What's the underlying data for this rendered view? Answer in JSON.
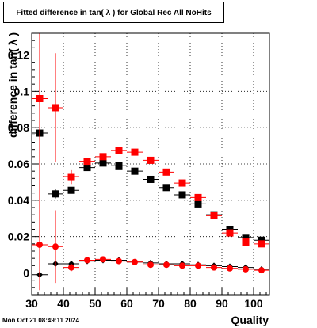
{
  "chart_data": {
    "type": "scatter",
    "title": "Fitted difference in tan( λ ) for Global Rec All NoHits",
    "xlabel": "Quality",
    "ylabel": "difference in tan( λ )",
    "xlim": [
      30,
      105
    ],
    "ylim": [
      -0.012,
      0.132
    ],
    "x_ticks": [
      30,
      40,
      50,
      60,
      70,
      80,
      90,
      100
    ],
    "y_ticks": [
      0,
      0.02,
      0.04,
      0.06,
      0.08,
      0.1,
      0.12
    ],
    "y_tick_labels": [
      "0",
      "0.02",
      "0.04",
      "0.06",
      "0.08",
      "0.1",
      "0.12"
    ],
    "grid": true,
    "x_bin_half_width": 2.5,
    "series": [
      {
        "marker": "square",
        "color": "#000000",
        "x": [
          32.5,
          37.5,
          42.5,
          47.5,
          52.5,
          57.5,
          62.5,
          67.5,
          72.5,
          77.5,
          82.5,
          87.5,
          92.5,
          97.5,
          102.5
        ],
        "y": [
          0.077,
          0.0435,
          0.0455,
          0.058,
          0.0605,
          0.059,
          0.056,
          0.0515,
          0.047,
          0.043,
          0.038,
          0.032,
          0.024,
          0.0195,
          0.018
        ],
        "yerr": [
          0.0,
          0.0025,
          0.0015,
          0.001,
          0.001,
          0.001,
          0.001,
          0.001,
          0.001,
          0.001,
          0.001,
          0.001,
          0.001,
          0.001,
          0.001
        ]
      },
      {
        "marker": "square",
        "color": "#ff0000",
        "x": [
          32.5,
          37.5,
          42.5,
          47.5,
          52.5,
          57.5,
          62.5,
          67.5,
          72.5,
          77.5,
          82.5,
          87.5,
          92.5,
          97.5,
          102.5
        ],
        "y": [
          0.096,
          0.091,
          0.053,
          0.0615,
          0.064,
          0.0675,
          0.0665,
          0.062,
          0.0555,
          0.0495,
          0.0415,
          0.0315,
          0.022,
          0.017,
          0.016
        ],
        "yerr": [
          0.06,
          0.03,
          0.004,
          0.002,
          0.0015,
          0.0015,
          0.0015,
          0.0015,
          0.0015,
          0.0015,
          0.0015,
          0.0015,
          0.0015,
          0.0015,
          0.0015
        ]
      },
      {
        "marker": "diamond",
        "color": "#000000",
        "x": [
          32.5,
          37.5,
          42.5,
          47.5,
          52.5,
          57.5,
          62.5,
          67.5,
          72.5,
          77.5,
          82.5,
          87.5,
          92.5,
          97.5,
          102.5
        ],
        "y": [
          -0.001,
          0.005,
          0.005,
          0.0065,
          0.007,
          0.007,
          0.006,
          0.0055,
          0.005,
          0.005,
          0.0045,
          0.004,
          0.0035,
          0.003,
          0.002
        ],
        "yerr": [
          0.003,
          0.003,
          0.001,
          0.0005,
          0.0005,
          0.0005,
          0.0005,
          0.0005,
          0.0005,
          0.0005,
          0.0005,
          0.0005,
          0.0005,
          0.0005,
          0.0005
        ]
      },
      {
        "marker": "circle",
        "color": "#ff0000",
        "x": [
          32.5,
          37.5,
          42.5,
          47.5,
          52.5,
          57.5,
          62.5,
          67.5,
          72.5,
          77.5,
          82.5,
          87.5,
          92.5,
          97.5,
          102.5
        ],
        "y": [
          0.0155,
          0.0145,
          0.003,
          0.007,
          0.0075,
          0.0065,
          0.006,
          0.0045,
          0.0045,
          0.004,
          0.004,
          0.003,
          0.0025,
          0.002,
          0.0015
        ],
        "yerr": [
          0.025,
          0.02,
          0.002,
          0.001,
          0.0005,
          0.0005,
          0.0005,
          0.0005,
          0.0005,
          0.0005,
          0.0005,
          0.0005,
          0.0005,
          0.0005,
          0.0005
        ]
      }
    ]
  },
  "footer": {
    "date_stamp": "Mon Oct 21 08:49:11 2024"
  }
}
